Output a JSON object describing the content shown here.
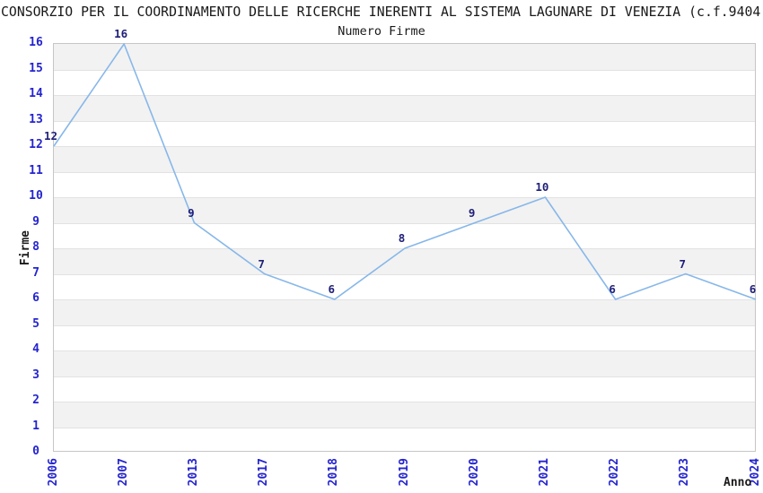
{
  "chart_data": {
    "type": "line",
    "title": "CONSORZIO PER IL COORDINAMENTO DELLE RICERCHE INERENTI AL SISTEMA LAGUNARE DI VENEZIA (c.f.9404",
    "subtitle": "Numero Firme",
    "xlabel": "Anno",
    "ylabel": "Firme",
    "categories": [
      "2006",
      "2007",
      "2013",
      "2017",
      "2018",
      "2019",
      "2020",
      "2021",
      "2022",
      "2023",
      "2024"
    ],
    "values": [
      12,
      16,
      9,
      7,
      6,
      8,
      9,
      10,
      6,
      7,
      6
    ],
    "ylim": [
      0,
      16
    ],
    "ytick_interval": 1,
    "x_tick_rotation": 90,
    "grid": "alternating-horizontal-bands",
    "legend_position": "none",
    "data_labels_shown": true,
    "colors": {
      "series_line": "#87b7e9",
      "axis_tick_label": "#2424cf",
      "data_label": "#1f1f78",
      "band_fill": "#f2f2f2",
      "gridline": "#e2e2e2",
      "plot_border": "#c6c6c6",
      "text": "#191919"
    }
  }
}
